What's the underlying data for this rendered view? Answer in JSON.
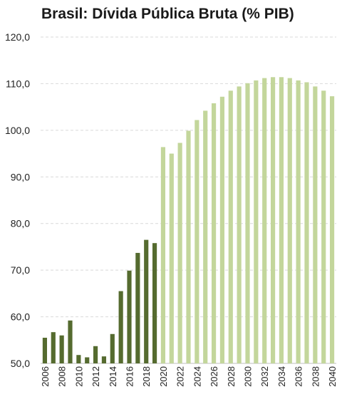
{
  "chart_data": {
    "type": "bar",
    "title": "Brasil: Dívida Pública Bruta (%  PIB)",
    "xlabel": "",
    "ylabel": "",
    "ylim": [
      50,
      120
    ],
    "yticks": [
      "50,0",
      "60,0",
      "70,0",
      "80,0",
      "90,0",
      "100,0",
      "110,0",
      "120,0"
    ],
    "ytick_values": [
      50,
      60,
      70,
      80,
      90,
      100,
      110,
      120
    ],
    "grid": true,
    "legend": "none",
    "categories": [
      "2006",
      "2007",
      "2008",
      "2009",
      "2010",
      "2011",
      "2012",
      "2013",
      "2014",
      "2015",
      "2016",
      "2017",
      "2018",
      "2019",
      "2020",
      "2021",
      "2022",
      "2023",
      "2024",
      "2025",
      "2026",
      "2027",
      "2028",
      "2029",
      "2030",
      "2031",
      "2032",
      "2033",
      "2034",
      "2035",
      "2036",
      "2037",
      "2038",
      "2039",
      "2040"
    ],
    "xticks": [
      "2006",
      "2008",
      "2010",
      "2012",
      "2014",
      "2016",
      "2018",
      "2020",
      "2022",
      "2024",
      "2026",
      "2028",
      "2030",
      "2032",
      "2034",
      "2036",
      "2038",
      "2040"
    ],
    "series": [
      {
        "values": [
          55.5,
          56.7,
          56.0,
          59.2,
          51.8,
          51.3,
          53.7,
          51.5,
          56.3,
          65.5,
          69.9,
          73.7,
          76.5,
          75.8,
          null,
          null,
          null,
          null,
          null,
          null,
          null,
          null,
          null,
          null,
          null,
          null,
          null,
          null,
          null,
          null,
          null,
          null,
          null,
          null,
          null
        ],
        "color": "#556b2f"
      },
      {
        "values": [
          null,
          null,
          null,
          null,
          null,
          null,
          null,
          null,
          null,
          null,
          null,
          null,
          null,
          null,
          96.4,
          95.0,
          97.3,
          99.9,
          102.2,
          104.2,
          105.8,
          107.2,
          108.5,
          109.4,
          110.1,
          110.7,
          111.2,
          111.4,
          111.4,
          111.2,
          110.7,
          110.3,
          109.4,
          108.5,
          107.3
        ],
        "color": "#c3d69b"
      }
    ]
  }
}
